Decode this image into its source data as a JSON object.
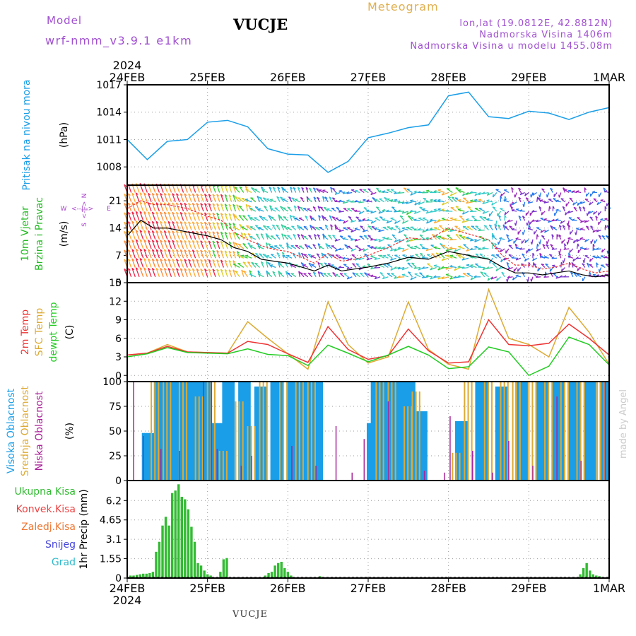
{
  "header": {
    "model_label": "Model",
    "model_name": "wrf-nmm_v3.9.1 e1km",
    "station": "VUCJE",
    "product": "Meteogram",
    "lonlat": "lon,lat (19.0812E, 42.8812N)",
    "elevation": "Nadmorska Visina 1406m",
    "model_elevation": "Nadmorska Visina u modelu 1455.08m"
  },
  "footer_station": "VUCJE",
  "watermark": "made by Angel",
  "colors": {
    "pressure": "#1a9ee8",
    "wind_label": "#22bb22",
    "temp2m": "#ee3333",
    "sfc_temp": "#ddaa33",
    "dewpoint": "#22cc22",
    "cloud_high": "#1a9ee8",
    "cloud_mid": "#ddaa33",
    "cloud_low": "#aa2299",
    "precip_total": "#33bb33",
    "precip_conv": "#ee4444",
    "precip_frozen": "#ee7733",
    "precip_snow": "#4444dd",
    "precip_hail": "#33bbcc",
    "compass": "#aa44cc"
  },
  "chart_data": [
    {
      "id": "pressure",
      "type": "line",
      "title": "",
      "ylabel": "Pritisak na nivou mora",
      "unit": "(hPa)",
      "x_axis": {
        "categories": [
          "24FEB",
          "25FEB",
          "26FEB",
          "27FEB",
          "28FEB",
          "29FEB",
          "1MAR"
        ],
        "top_year": "2024",
        "bottom_year": "2024"
      },
      "ylim": [
        1006,
        1017
      ],
      "yticks": [
        1008,
        1011,
        1014,
        1017
      ],
      "grid": true,
      "series": [
        {
          "x": [
            0,
            0.25,
            0.5,
            0.75,
            1.0,
            1.25,
            1.5,
            1.75,
            2.0,
            2.25,
            2.5,
            2.75,
            3.0,
            3.25,
            3.5,
            3.75,
            4.0,
            4.25,
            4.5,
            4.75,
            5.0,
            5.25,
            5.5,
            5.75,
            6.0
          ],
          "values": [
            1011.0,
            1008.8,
            1010.8,
            1011.0,
            1012.9,
            1013.1,
            1012.4,
            1010.0,
            1009.4,
            1009.3,
            1007.4,
            1008.6,
            1011.2,
            1011.7,
            1012.3,
            1012.6,
            1015.8,
            1016.2,
            1013.5,
            1013.3,
            1014.1,
            1013.9,
            1013.2,
            1014.0,
            1014.5
          ]
        }
      ]
    },
    {
      "id": "wind",
      "type": "line",
      "title": "",
      "ylabel": [
        "10m Vjetar",
        "Brzina i Pravac"
      ],
      "unit": "(m/s)",
      "compass": {
        "west": "W",
        "east": "E",
        "north": "N",
        "south": "S"
      },
      "ylim": [
        0,
        25
      ],
      "yticks": [
        0,
        7,
        14,
        21
      ],
      "grid": true,
      "series": [
        {
          "name": "mean",
          "x": [
            0,
            0.17,
            0.33,
            0.5,
            0.75,
            1.0,
            1.17,
            1.33,
            1.5,
            1.67,
            1.83,
            2.0,
            2.17,
            2.33,
            2.5,
            2.67,
            2.83,
            3.0,
            3.25,
            3.5,
            3.75,
            4.0,
            4.25,
            4.5,
            4.67,
            4.83,
            5.0,
            5.17,
            5.33,
            5.5,
            5.67,
            5.83,
            6.0
          ],
          "values": [
            12.0,
            16.0,
            14.0,
            14.0,
            13.0,
            12.0,
            11.0,
            9.0,
            8.0,
            6.0,
            5.5,
            5.0,
            4.0,
            3.0,
            4.5,
            3.0,
            3.5,
            4.0,
            5.0,
            6.5,
            6.0,
            8.0,
            7.0,
            6.0,
            4.0,
            2.5,
            2.5,
            2.0,
            2.5,
            3.0,
            2.0,
            1.5,
            2.0
          ]
        },
        {
          "name": "gust",
          "x": [
            0,
            0.17,
            0.33,
            0.5,
            0.75,
            1.0,
            1.17,
            1.33,
            1.5,
            1.67,
            1.83,
            2.0,
            2.17,
            2.33,
            2.5,
            2.67,
            2.83,
            3.0,
            3.25,
            3.5,
            3.75,
            4.0,
            4.25,
            4.5,
            4.67,
            4.83,
            5.0,
            5.17,
            5.33,
            5.5,
            5.67,
            5.83,
            6.0
          ],
          "values": [
            19.0,
            21.0,
            20.0,
            20.0,
            19.0,
            17.0,
            16.0,
            13.0,
            11.0,
            9.5,
            8.5,
            8.0,
            6.5,
            5.0,
            7.5,
            5.5,
            6.0,
            7.0,
            9.0,
            11.5,
            11.0,
            14.0,
            12.5,
            11.0,
            7.0,
            4.5,
            4.5,
            3.5,
            4.0,
            5.0,
            3.5,
            2.5,
            3.0
          ]
        }
      ]
    },
    {
      "id": "temperature",
      "type": "line",
      "title": "",
      "ylabel": [
        "2m Temp",
        "SFC Temp",
        "dewpt Temp"
      ],
      "unit": "(C)",
      "ylim": [
        -1,
        15
      ],
      "yticks": [
        0,
        3,
        6,
        9,
        12,
        15
      ],
      "grid": true,
      "series": [
        {
          "name": "2m Temp",
          "x": [
            0,
            0.25,
            0.5,
            0.75,
            1.0,
            1.25,
            1.5,
            1.75,
            2.0,
            2.25,
            2.5,
            2.75,
            3.0,
            3.25,
            3.5,
            3.75,
            4.0,
            4.25,
            4.5,
            4.75,
            5.0,
            5.25,
            5.5,
            5.75,
            6.0
          ],
          "values": [
            3.3,
            3.6,
            4.7,
            3.8,
            3.7,
            3.6,
            5.5,
            5.0,
            3.5,
            2.1,
            7.9,
            4.2,
            2.6,
            3.2,
            7.5,
            4.0,
            2.0,
            2.2,
            9.0,
            5.0,
            4.8,
            5.2,
            8.3,
            6.0,
            3.3
          ]
        },
        {
          "name": "SFC Temp",
          "x": [
            0,
            0.25,
            0.5,
            0.75,
            1.0,
            1.25,
            1.5,
            1.75,
            2.0,
            2.25,
            2.5,
            2.75,
            3.0,
            3.25,
            3.5,
            3.75,
            4.0,
            4.25,
            4.5,
            4.75,
            5.0,
            5.25,
            5.5,
            5.75,
            6.0
          ],
          "values": [
            3.3,
            3.6,
            5.0,
            3.8,
            3.7,
            3.6,
            8.7,
            6.0,
            3.5,
            1.0,
            11.9,
            5.0,
            2.0,
            3.0,
            11.9,
            4.2,
            1.8,
            1.0,
            13.9,
            6.0,
            5.0,
            3.0,
            11.0,
            7.0,
            1.8
          ]
        },
        {
          "name": "dewpt Temp",
          "x": [
            0,
            0.25,
            0.5,
            0.75,
            1.0,
            1.25,
            1.5,
            1.75,
            2.0,
            2.25,
            2.5,
            2.75,
            3.0,
            3.25,
            3.5,
            3.75,
            4.0,
            4.25,
            4.5,
            4.75,
            5.0,
            5.25,
            5.5,
            5.75,
            6.0
          ],
          "values": [
            3.0,
            3.5,
            4.5,
            3.7,
            3.6,
            3.5,
            4.3,
            3.4,
            3.2,
            1.6,
            4.9,
            3.6,
            2.2,
            3.3,
            4.7,
            3.3,
            1.1,
            1.4,
            4.6,
            3.8,
            0.0,
            1.5,
            6.2,
            5.0,
            1.7
          ]
        }
      ]
    },
    {
      "id": "clouds",
      "type": "bar",
      "title": "",
      "ylabel": [
        "Visoka Oblacnost",
        "Srednja Oblacnost",
        "Niska Oblacnost"
      ],
      "unit": "(%)",
      "ylim": [
        0,
        100
      ],
      "yticks": [
        0,
        25,
        50,
        75,
        100
      ],
      "grid": true,
      "series": [
        {
          "name": "Visoka Oblacnost",
          "x": [
            0.2,
            0.35,
            0.5,
            0.6,
            0.7,
            0.8,
            0.9,
            1.05,
            1.2,
            1.4,
            1.6,
            1.8,
            2.0,
            2.15,
            2.3,
            3.0,
            3.05,
            3.15,
            3.3,
            3.45,
            3.6,
            4.1,
            4.35,
            4.6,
            4.85,
            5.1,
            5.3,
            5.5,
            5.7,
            5.9
          ],
          "values": [
            48,
            100,
            100,
            100,
            100,
            100,
            100,
            58,
            100,
            100,
            95,
            100,
            100,
            100,
            100,
            58,
            100,
            100,
            100,
            100,
            70,
            60,
            100,
            95,
            100,
            100,
            100,
            100,
            100,
            100
          ]
        },
        {
          "name": "Srednja Oblacnost",
          "x": [
            0.3,
            0.45,
            0.65,
            0.85,
            1.0,
            1.15,
            1.35,
            1.5,
            1.65,
            1.9,
            2.1,
            2.25,
            3.1,
            3.25,
            3.45,
            3.55,
            4.05,
            4.2,
            4.45,
            4.65,
            4.8,
            5.0,
            5.2,
            5.4,
            5.6,
            5.85
          ],
          "values": [
            100,
            100,
            100,
            85,
            100,
            30,
            80,
            55,
            100,
            100,
            100,
            100,
            100,
            100,
            75,
            90,
            28,
            100,
            100,
            100,
            100,
            100,
            100,
            100,
            100,
            100
          ]
        },
        {
          "name": "Niska Oblacnost",
          "x": [
            0.08,
            0.2,
            0.42,
            0.65,
            0.95,
            1.05,
            1.12,
            1.42,
            1.55,
            2.05,
            2.35,
            2.6,
            2.8,
            2.95,
            3.25,
            3.7,
            3.95,
            4.02,
            4.3,
            4.55,
            4.75,
            5.05,
            5.35,
            5.65,
            5.95
          ],
          "values": [
            100,
            45,
            32,
            30,
            100,
            100,
            32,
            15,
            25,
            35,
            15,
            55,
            8,
            42,
            80,
            10,
            8,
            65,
            30,
            8,
            40,
            15,
            85,
            20,
            100
          ]
        }
      ]
    },
    {
      "id": "precip",
      "type": "bar",
      "title": "",
      "ylabel": "1hr Precip",
      "unit": "(mm)",
      "legend": [
        "Ukupna Kisa",
        "Konvek.Kisa",
        "Zaledj.Kisa",
        "Snijeg",
        "Grad"
      ],
      "ylim": [
        0,
        7.8
      ],
      "yticks": [
        0,
        1.55,
        3.1,
        4.65,
        6.2
      ],
      "ytick_labels": [
        "0",
        "1.55",
        "3.1",
        "4.65",
        "6.2"
      ],
      "x_axis": {
        "categories": [
          "24FEB",
          "25FEB",
          "26FEB",
          "27FEB",
          "28FEB",
          "29FEB",
          "1MAR"
        ],
        "year": "2024"
      },
      "grid": true,
      "series": [
        {
          "name": "Ukupna Kisa",
          "x": [
            0.04,
            0.08,
            0.12,
            0.16,
            0.2,
            0.24,
            0.28,
            0.32,
            0.36,
            0.4,
            0.44,
            0.48,
            0.52,
            0.56,
            0.6,
            0.64,
            0.68,
            0.72,
            0.76,
            0.8,
            0.84,
            0.88,
            0.92,
            0.96,
            1.0,
            1.04,
            1.16,
            1.2,
            1.24,
            1.72,
            1.76,
            1.8,
            1.84,
            1.88,
            1.92,
            1.96,
            2.0,
            2.04,
            2.4,
            5.64,
            5.68,
            5.72,
            5.76,
            5.8,
            5.84,
            5.88
          ],
          "values": [
            0.2,
            0.2,
            0.25,
            0.3,
            0.35,
            0.35,
            0.4,
            0.5,
            2.1,
            2.9,
            4.2,
            4.9,
            4.2,
            6.8,
            7.0,
            7.5,
            6.5,
            6.3,
            5.5,
            4.1,
            2.9,
            1.2,
            1.0,
            0.6,
            0.3,
            0.2,
            0.5,
            1.5,
            1.6,
            0.2,
            0.4,
            0.5,
            1.0,
            1.2,
            1.3,
            0.8,
            0.5,
            0.2,
            0.15,
            0.3,
            0.8,
            1.2,
            0.6,
            0.3,
            0.2,
            0.15
          ]
        }
      ]
    }
  ]
}
